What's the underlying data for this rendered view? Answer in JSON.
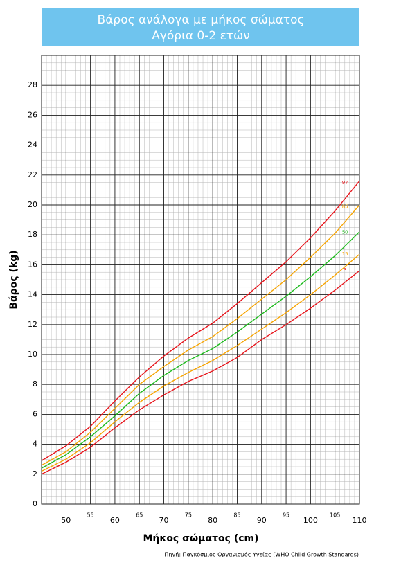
{
  "chart_data": {
    "type": "line",
    "title": "Βάρος ανάλογα με μήκος σώματος",
    "subtitle": "Αγόρια 0-2 ετών",
    "x_label": "Μήκος σώματος (cm)",
    "y_label": "Βάρος (kg)",
    "source": "Πηγή: Παγκόσμιος Οργανισμός Υγείας (WHO Child Growth Standards)",
    "x": [
      45,
      50,
      55,
      60,
      65,
      70,
      75,
      80,
      85,
      90,
      95,
      100,
      105,
      110
    ],
    "series": [
      {
        "name": "97",
        "color": "#e8141b",
        "values": [
          2.9,
          3.9,
          5.2,
          6.9,
          8.5,
          9.9,
          11.1,
          12.1,
          13.4,
          14.8,
          16.2,
          17.8,
          19.6,
          21.6
        ]
      },
      {
        "name": "85",
        "color": "#f7a400",
        "values": [
          2.6,
          3.5,
          4.8,
          6.4,
          8.0,
          9.2,
          10.3,
          11.2,
          12.4,
          13.7,
          15.0,
          16.5,
          18.1,
          20.0
        ]
      },
      {
        "name": "50",
        "color": "#1dbb1d",
        "values": [
          2.4,
          3.3,
          4.5,
          5.9,
          7.4,
          8.6,
          9.6,
          10.4,
          11.5,
          12.7,
          13.9,
          15.2,
          16.6,
          18.2
        ]
      },
      {
        "name": "15",
        "color": "#f7a400",
        "values": [
          2.2,
          3.0,
          4.1,
          5.5,
          6.8,
          7.9,
          8.8,
          9.6,
          10.6,
          11.7,
          12.8,
          14.0,
          15.3,
          16.7
        ]
      },
      {
        "name": "3",
        "color": "#e8141b",
        "values": [
          2.0,
          2.8,
          3.8,
          5.1,
          6.3,
          7.3,
          8.2,
          8.9,
          9.8,
          11.0,
          12.0,
          13.1,
          14.3,
          15.6
        ]
      }
    ],
    "xlim": [
      45,
      110
    ],
    "xticks": [
      50,
      55,
      60,
      65,
      70,
      75,
      80,
      85,
      90,
      95,
      100,
      105,
      110
    ],
    "ylim": [
      0,
      30
    ],
    "yticks": [
      0,
      2,
      4,
      6,
      8,
      10,
      12,
      14,
      16,
      18,
      20,
      22,
      24,
      26,
      28
    ],
    "grid": true
  }
}
